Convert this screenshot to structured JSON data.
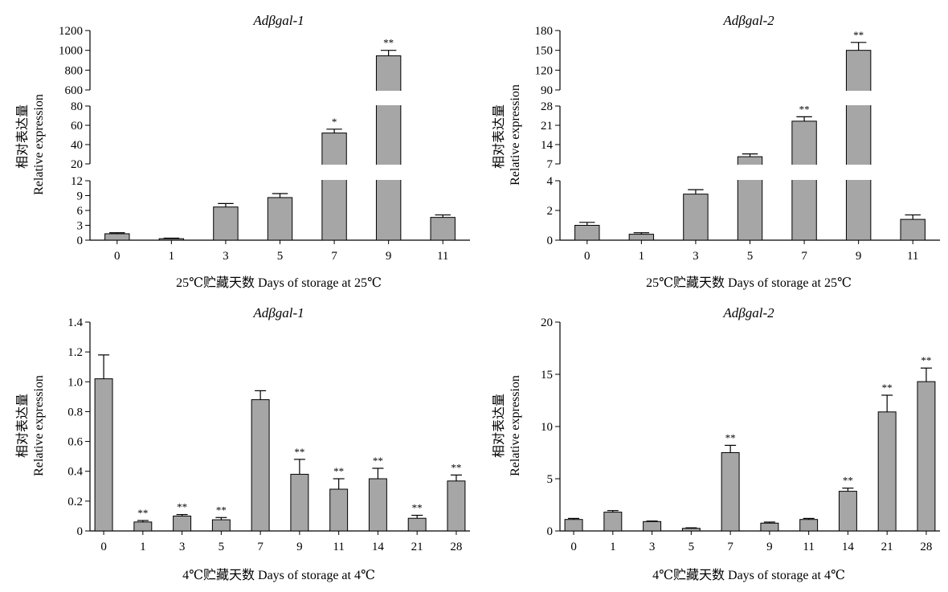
{
  "figure": {
    "colors": {
      "bar_fill": "#a6a6a6",
      "bar_stroke": "#000000",
      "axis": "#000000"
    }
  },
  "chart_data": [
    {
      "type": "bar",
      "title": "Adβgal-1",
      "ylabel_cn": "相对表达量",
      "ylabel": "Relative expression",
      "xlabel": "25℃贮藏天数 Days of storage at 25℃",
      "categories": [
        "0",
        "1",
        "3",
        "5",
        "7",
        "9",
        "11"
      ],
      "values": [
        1.3,
        0.3,
        6.7,
        8.6,
        52,
        945,
        4.6
      ],
      "errors": [
        0.2,
        0.1,
        0.7,
        0.8,
        4,
        55,
        0.5
      ],
      "significance": [
        "",
        "",
        "",
        "",
        "*",
        "**",
        ""
      ],
      "broken_y_axis": true,
      "y_segments": [
        {
          "range": [
            0,
            12
          ],
          "ticks": [
            "0",
            "3",
            "6",
            "9",
            "12"
          ]
        },
        {
          "range": [
            20,
            80
          ],
          "ticks": [
            "20",
            "40",
            "60",
            "80"
          ]
        },
        {
          "range": [
            600,
            1200
          ],
          "ticks": [
            "600",
            "800",
            "1000",
            "1200"
          ]
        }
      ]
    },
    {
      "type": "bar",
      "title": "Adβgal-2",
      "ylabel_cn": "相对表达量",
      "ylabel": "Relative expression",
      "xlabel": "25℃贮藏天数 Days of storage at 25℃",
      "categories": [
        "0",
        "1",
        "3",
        "5",
        "7",
        "9",
        "11"
      ],
      "values": [
        1.0,
        0.4,
        3.1,
        9.6,
        22.5,
        150,
        1.4
      ],
      "errors": [
        0.2,
        0.1,
        0.3,
        1.0,
        1.6,
        12,
        0.3
      ],
      "significance": [
        "",
        "",
        "",
        "",
        "**",
        "**",
        ""
      ],
      "broken_y_axis": true,
      "y_segments": [
        {
          "range": [
            0,
            4
          ],
          "ticks": [
            "0",
            "2",
            "4"
          ]
        },
        {
          "range": [
            7,
            28
          ],
          "ticks": [
            "7",
            "14",
            "21",
            "28"
          ]
        },
        {
          "range": [
            90,
            180
          ],
          "ticks": [
            "90",
            "120",
            "150",
            "180"
          ]
        }
      ]
    },
    {
      "type": "bar",
      "title": "Adβgal-1",
      "ylabel_cn": "相对表达量",
      "ylabel": "Relative expression",
      "xlabel": "4℃贮藏天数 Days of storage at 4℃",
      "categories": [
        "0",
        "1",
        "3",
        "5",
        "7",
        "9",
        "11",
        "14",
        "21",
        "28"
      ],
      "values": [
        1.02,
        0.06,
        0.1,
        0.075,
        0.88,
        0.38,
        0.28,
        0.35,
        0.085,
        0.335
      ],
      "errors": [
        0.16,
        0.01,
        0.01,
        0.015,
        0.06,
        0.1,
        0.07,
        0.07,
        0.02,
        0.04
      ],
      "significance": [
        "",
        "**",
        "**",
        "**",
        "",
        "**",
        "**",
        "**",
        "**",
        "**"
      ],
      "broken_y_axis": false,
      "y_segments": [
        {
          "range": [
            0,
            1.4
          ],
          "ticks": [
            "0",
            "0.2",
            "0.4",
            "0.6",
            "0.8",
            "1.0",
            "1.2",
            "1.4"
          ]
        }
      ]
    },
    {
      "type": "bar",
      "title": "Adβgal-2",
      "ylabel_cn": "相对表达量",
      "ylabel": "Relative expression",
      "xlabel": "4℃贮藏天数 Days of storage at 4℃",
      "categories": [
        "0",
        "1",
        "3",
        "5",
        "7",
        "9",
        "11",
        "14",
        "21",
        "28"
      ],
      "values": [
        1.1,
        1.8,
        0.9,
        0.25,
        7.5,
        0.75,
        1.1,
        3.8,
        11.4,
        14.3
      ],
      "errors": [
        0.1,
        0.15,
        0.05,
        0.05,
        0.7,
        0.1,
        0.1,
        0.3,
        1.6,
        1.3
      ],
      "significance": [
        "",
        "",
        "",
        "",
        "**",
        "",
        "",
        "**",
        "**",
        "**"
      ],
      "broken_y_axis": false,
      "y_segments": [
        {
          "range": [
            0,
            20
          ],
          "ticks": [
            "0",
            "5",
            "10",
            "15",
            "20"
          ]
        }
      ]
    }
  ]
}
